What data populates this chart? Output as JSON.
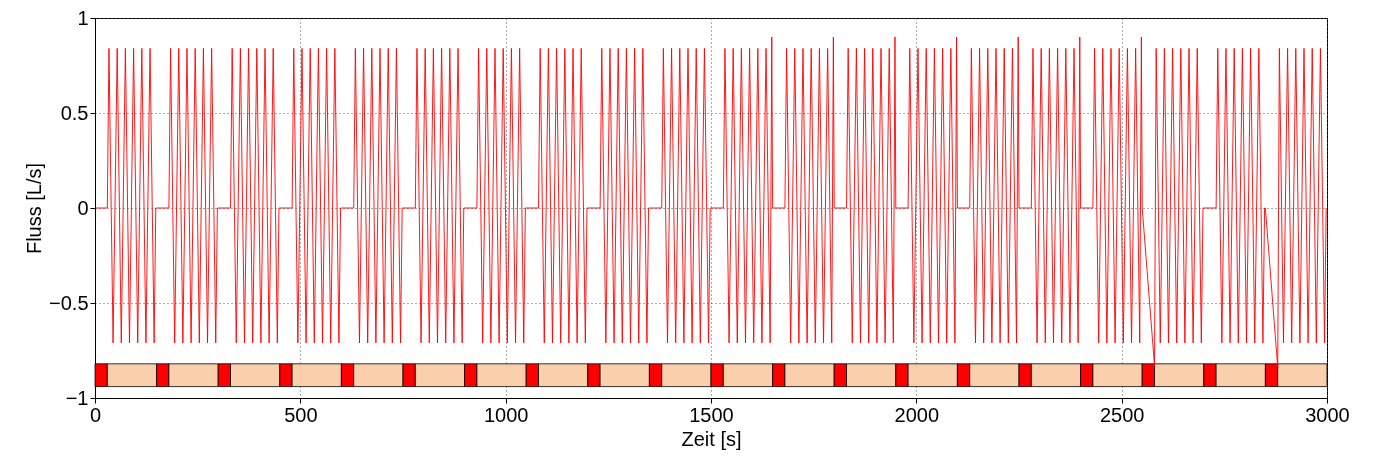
{
  "chart_data": {
    "type": "line",
    "xlabel": "Zeit [s]",
    "ylabel": "Fluss [L/s]",
    "xlim": [
      0,
      3000
    ],
    "xticks": [
      0,
      500,
      1000,
      1500,
      2000,
      2500,
      3000
    ],
    "ylim": [
      -1,
      1
    ],
    "yticks": [
      -1,
      -0.5,
      0,
      0.5,
      1
    ],
    "grid": true,
    "series": [
      {
        "color": "#ff0000",
        "x": [
          0,
          30,
          34,
          44,
          54,
          64,
          74,
          84,
          94,
          104,
          114,
          124,
          134,
          144,
          148,
          150,
          180,
          184,
          194,
          204,
          214,
          224,
          234,
          244,
          254,
          264,
          274,
          284,
          294,
          298,
          300,
          330,
          334,
          344,
          354,
          364,
          374,
          384,
          394,
          404,
          414,
          424,
          434,
          444,
          448,
          450,
          480,
          484,
          494,
          504,
          514,
          524,
          534,
          544,
          554,
          564,
          574,
          584,
          594,
          598,
          600,
          630,
          634,
          644,
          654,
          664,
          674,
          684,
          694,
          704,
          714,
          724,
          734,
          744,
          748,
          750,
          780,
          784,
          794,
          804,
          814,
          824,
          834,
          844,
          854,
          864,
          874,
          884,
          894,
          898,
          900,
          930,
          934,
          944,
          954,
          964,
          974,
          984,
          994,
          1004,
          1014,
          1024,
          1034,
          1044,
          1048,
          1050,
          1080,
          1084,
          1094,
          1104,
          1114,
          1124,
          1134,
          1144,
          1154,
          1164,
          1174,
          1184,
          1194,
          1198,
          1200,
          1230,
          1234,
          1244,
          1254,
          1264,
          1274,
          1284,
          1294,
          1304,
          1314,
          1324,
          1334,
          1344,
          1348,
          1350,
          1380,
          1384,
          1394,
          1404,
          1414,
          1424,
          1434,
          1444,
          1454,
          1464,
          1474,
          1484,
          1494,
          1498,
          1500,
          1530,
          1534,
          1544,
          1554,
          1564,
          1574,
          1584,
          1594,
          1604,
          1614,
          1624,
          1634,
          1644,
          1648,
          1650,
          1680,
          1684,
          1694,
          1704,
          1714,
          1724,
          1734,
          1744,
          1754,
          1764,
          1774,
          1784,
          1794,
          1798,
          1800,
          1830,
          1834,
          1844,
          1854,
          1864,
          1874,
          1884,
          1894,
          1904,
          1914,
          1924,
          1934,
          1944,
          1948,
          1950,
          1980,
          1984,
          1994,
          2004,
          2014,
          2024,
          2034,
          2044,
          2054,
          2064,
          2074,
          2084,
          2094,
          2098,
          2100,
          2130,
          2134,
          2144,
          2154,
          2164,
          2174,
          2184,
          2194,
          2204,
          2214,
          2224,
          2234,
          2244,
          2248,
          2250,
          2280,
          2284,
          2294,
          2304,
          2314,
          2324,
          2334,
          2344,
          2354,
          2364,
          2374,
          2384,
          2394,
          2398,
          2400,
          2430,
          2434,
          2444,
          2454,
          2464,
          2474,
          2484,
          2494,
          2504,
          2514,
          2524,
          2534,
          2544,
          2548,
          2550,
          2580,
          2584,
          2594,
          2604,
          2614,
          2624,
          2634,
          2644,
          2654,
          2664,
          2674,
          2684,
          2694,
          2698,
          2700,
          2730,
          2734,
          2744,
          2754,
          2764,
          2774,
          2784,
          2794,
          2804,
          2814,
          2824,
          2834,
          2844,
          2848,
          2850,
          2880,
          2884,
          2894,
          2904,
          2914,
          2924,
          2934,
          2944,
          2954,
          2964,
          2974,
          2984,
          2994,
          2998
        ],
        "values": [
          0,
          0,
          0.84,
          -0.71,
          0.84,
          -0.71,
          0.84,
          -0.71,
          0.84,
          -0.71,
          0.84,
          -0.71,
          0.84,
          -0.71,
          0,
          0,
          0,
          0.84,
          -0.71,
          0.84,
          -0.71,
          0.84,
          -0.71,
          0.84,
          -0.71,
          0.84,
          -0.71,
          0.84,
          -0.71,
          0,
          0,
          0,
          0.84,
          -0.71,
          0.84,
          -0.71,
          0.84,
          -0.71,
          0.84,
          -0.71,
          0.84,
          -0.71,
          0.84,
          -0.71,
          0,
          0,
          0,
          0.84,
          -0.71,
          0.84,
          -0.71,
          0.84,
          -0.71,
          0.84,
          -0.71,
          0.84,
          -0.71,
          0.84,
          -0.71,
          0,
          0,
          0,
          0.84,
          -0.71,
          0.84,
          -0.71,
          0.84,
          -0.71,
          0.84,
          -0.71,
          0.84,
          -0.71,
          0.84,
          -0.71,
          0,
          0,
          0,
          0.84,
          -0.71,
          0.84,
          -0.71,
          0.84,
          -0.71,
          0.84,
          -0.71,
          0.84,
          -0.71,
          0.84,
          -0.71,
          0,
          0,
          0,
          0.84,
          -0.71,
          0.84,
          -0.71,
          0.84,
          -0.71,
          0.84,
          -0.71,
          0.84,
          -0.71,
          0.84,
          -0.71,
          0,
          0,
          0,
          0.84,
          -0.71,
          0.84,
          -0.71,
          0.84,
          -0.71,
          0.84,
          -0.71,
          0.84,
          -0.71,
          0.84,
          -0.71,
          0,
          0,
          0,
          0.84,
          -0.71,
          0.84,
          -0.71,
          0.84,
          -0.71,
          0.84,
          -0.71,
          0.84,
          -0.71,
          0.84,
          -0.71,
          0,
          0,
          0,
          0.84,
          -0.71,
          0.84,
          -0.71,
          0.84,
          -0.71,
          0.84,
          -0.71,
          0.84,
          -0.71,
          0.84,
          -0.71,
          0,
          0,
          0,
          0.84,
          -0.71,
          0.84,
          -0.71,
          0.84,
          -0.71,
          0.84,
          -0.71,
          0.84,
          -0.71,
          0.84,
          -0.71,
          0.9,
          0,
          0,
          0.84,
          -0.71,
          0.84,
          -0.71,
          0.84,
          -0.71,
          0.84,
          -0.71,
          0.84,
          -0.71,
          0.84,
          -0.71,
          0.9,
          0,
          0,
          0.84,
          -0.71,
          0.84,
          -0.71,
          0.84,
          -0.71,
          0.84,
          -0.71,
          0.84,
          -0.71,
          0.84,
          -0.71,
          0.9,
          0,
          0,
          0.84,
          -0.71,
          0.84,
          -0.71,
          0.84,
          -0.71,
          0.84,
          -0.71,
          0.84,
          -0.71,
          0.84,
          -0.71,
          0.9,
          0,
          0,
          0.84,
          -0.71,
          0.84,
          -0.71,
          0.84,
          -0.71,
          0.84,
          -0.71,
          0.84,
          -0.71,
          0.84,
          -0.71,
          0.9,
          0,
          0,
          0.84,
          -0.71,
          0.84,
          -0.71,
          0.84,
          -0.71,
          0.84,
          -0.71,
          0.84,
          -0.71,
          0.84,
          -0.71,
          0.9,
          0,
          0,
          0.84,
          -0.71,
          0.84,
          -0.71,
          0.84,
          -0.71,
          0.84,
          -0.71,
          0.84,
          -0.71,
          0.84,
          -0.71,
          0.9,
          0,
          -0.83,
          0.84,
          -0.71,
          0.84,
          -0.71,
          0.84,
          -0.71,
          0.84,
          -0.71,
          0.84,
          -0.71,
          0.84,
          -0.71,
          0,
          0,
          0,
          0.84,
          -0.71,
          0.84,
          -0.71,
          0.84,
          -0.71,
          0.84,
          -0.71,
          0.84,
          -0.71,
          0.84,
          -0.71,
          0,
          0,
          -0.84,
          0.84,
          -0.71,
          0.84,
          -0.71,
          0.84,
          -0.71,
          0.84,
          -0.71,
          0.84,
          -0.71,
          0.84,
          -0.71,
          0
        ]
      }
    ],
    "bands": [
      {
        "axis": "x",
        "from": 0,
        "to": 30,
        "color": "#ff0000"
      },
      {
        "axis": "x",
        "from": 30,
        "to": 150,
        "color": "#f9cfac"
      },
      {
        "axis": "x",
        "from": 150,
        "to": 180,
        "color": "#ff0000"
      },
      {
        "axis": "x",
        "from": 180,
        "to": 300,
        "color": "#f9cfac"
      },
      {
        "axis": "x",
        "from": 300,
        "to": 330,
        "color": "#ff0000"
      },
      {
        "axis": "x",
        "from": 330,
        "to": 450,
        "color": "#f9cfac"
      },
      {
        "axis": "x",
        "from": 450,
        "to": 480,
        "color": "#ff0000"
      },
      {
        "axis": "x",
        "from": 480,
        "to": 600,
        "color": "#f9cfac"
      },
      {
        "axis": "x",
        "from": 600,
        "to": 630,
        "color": "#ff0000"
      },
      {
        "axis": "x",
        "from": 630,
        "to": 750,
        "color": "#f9cfac"
      },
      {
        "axis": "x",
        "from": 750,
        "to": 780,
        "color": "#ff0000"
      },
      {
        "axis": "x",
        "from": 780,
        "to": 900,
        "color": "#f9cfac"
      },
      {
        "axis": "x",
        "from": 900,
        "to": 930,
        "color": "#ff0000"
      },
      {
        "axis": "x",
        "from": 930,
        "to": 1050,
        "color": "#f9cfac"
      },
      {
        "axis": "x",
        "from": 1050,
        "to": 1080,
        "color": "#ff0000"
      },
      {
        "axis": "x",
        "from": 1080,
        "to": 1200,
        "color": "#f9cfac"
      },
      {
        "axis": "x",
        "from": 1200,
        "to": 1230,
        "color": "#ff0000"
      },
      {
        "axis": "x",
        "from": 1230,
        "to": 1350,
        "color": "#f9cfac"
      },
      {
        "axis": "x",
        "from": 1350,
        "to": 1380,
        "color": "#ff0000"
      },
      {
        "axis": "x",
        "from": 1380,
        "to": 1500,
        "color": "#f9cfac"
      },
      {
        "axis": "x",
        "from": 1500,
        "to": 1530,
        "color": "#ff0000"
      },
      {
        "axis": "x",
        "from": 1530,
        "to": 1650,
        "color": "#f9cfac"
      },
      {
        "axis": "x",
        "from": 1650,
        "to": 1680,
        "color": "#ff0000"
      },
      {
        "axis": "x",
        "from": 1680,
        "to": 1800,
        "color": "#f9cfac"
      },
      {
        "axis": "x",
        "from": 1800,
        "to": 1830,
        "color": "#ff0000"
      },
      {
        "axis": "x",
        "from": 1830,
        "to": 1950,
        "color": "#f9cfac"
      },
      {
        "axis": "x",
        "from": 1950,
        "to": 1980,
        "color": "#ff0000"
      },
      {
        "axis": "x",
        "from": 1980,
        "to": 2100,
        "color": "#f9cfac"
      },
      {
        "axis": "x",
        "from": 2100,
        "to": 2130,
        "color": "#ff0000"
      },
      {
        "axis": "x",
        "from": 2130,
        "to": 2250,
        "color": "#f9cfac"
      },
      {
        "axis": "x",
        "from": 2250,
        "to": 2280,
        "color": "#ff0000"
      },
      {
        "axis": "x",
        "from": 2280,
        "to": 2400,
        "color": "#f9cfac"
      },
      {
        "axis": "x",
        "from": 2400,
        "to": 2430,
        "color": "#ff0000"
      },
      {
        "axis": "x",
        "from": 2430,
        "to": 2550,
        "color": "#f9cfac"
      },
      {
        "axis": "x",
        "from": 2550,
        "to": 2580,
        "color": "#ff0000"
      },
      {
        "axis": "x",
        "from": 2580,
        "to": 2700,
        "color": "#f9cfac"
      },
      {
        "axis": "x",
        "from": 2700,
        "to": 2730,
        "color": "#ff0000"
      },
      {
        "axis": "x",
        "from": 2730,
        "to": 2850,
        "color": "#f9cfac"
      },
      {
        "axis": "x",
        "from": 2850,
        "to": 2880,
        "color": "#ff0000"
      },
      {
        "axis": "x",
        "from": 2880,
        "to": 3000,
        "color": "#f9cfac"
      }
    ]
  }
}
